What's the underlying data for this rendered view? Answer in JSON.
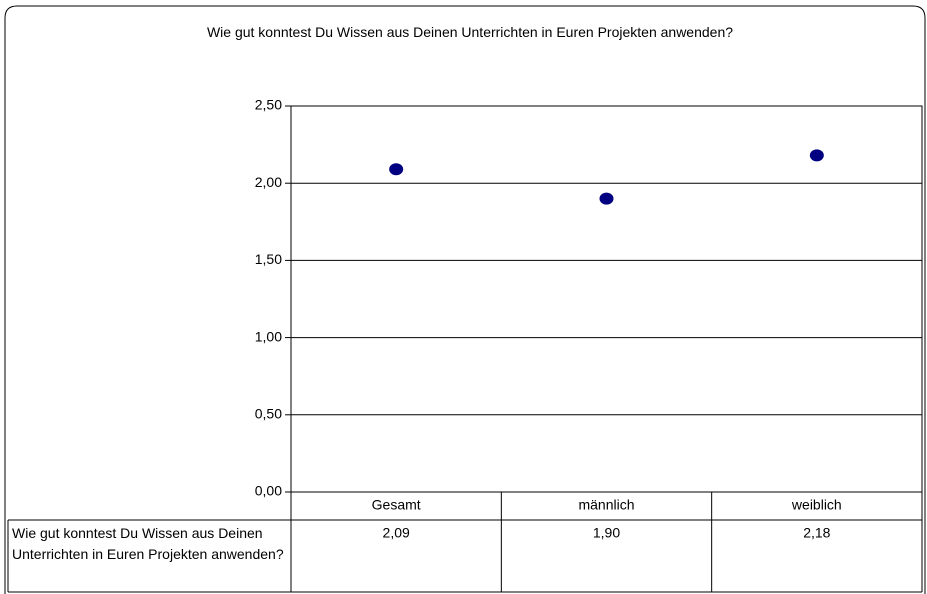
{
  "chart_data": {
    "type": "dot",
    "title": "Wie gut konntest Du Wissen aus Deinen Unterrichten in Euren Projekten anwenden?",
    "categories": [
      "Gesamt",
      "männlich",
      "weiblich"
    ],
    "series": [
      {
        "name": "Wie gut konntest Du Wissen aus Deinen Unterrichten in Euren Projekten anwenden?",
        "color": "#000080",
        "values": [
          2.09,
          1.9,
          2.18
        ],
        "value_labels": [
          "2,09",
          "1,90",
          "2,18"
        ]
      }
    ],
    "ylim": [
      0,
      2.5
    ],
    "yticks": [
      {
        "value": 0,
        "label": "0,00"
      },
      {
        "value": 0.5,
        "label": "0,50"
      },
      {
        "value": 1,
        "label": "1,00"
      },
      {
        "value": 1.5,
        "label": "1,50"
      },
      {
        "value": 2,
        "label": "2,00"
      },
      {
        "value": 2.5,
        "label": "2,50"
      }
    ],
    "grid": true,
    "data_table": true
  }
}
